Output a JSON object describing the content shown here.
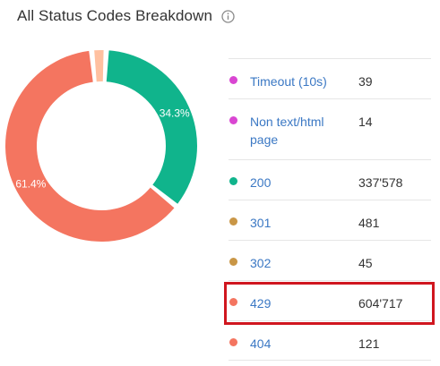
{
  "header": {
    "title": "All Status Codes Breakdown",
    "info_icon": "info-circle-icon"
  },
  "chart_data": {
    "type": "pie",
    "style": "donut",
    "labels": [
      "Timeout (10s)",
      "Non text/html page",
      "200",
      "301",
      "302",
      "429",
      "404"
    ],
    "values": [
      39,
      14,
      337578,
      481,
      45,
      604717,
      121
    ],
    "slice_labels": {
      "200": "34.3%",
      "429": "61.4%"
    },
    "colors": {
      "Timeout (10s)": "#d946d2",
      "Non text/html page": "#d946d2",
      "200": "#10b48c",
      "301": "#c99646",
      "302": "#c99646",
      "429": "#f47560",
      "404": "#f47560",
      "other": "#ffc0a0"
    }
  },
  "legend": {
    "items": [
      {
        "label": "Timeout (10s)",
        "value": "39",
        "color": "#d946d2"
      },
      {
        "label": "Non text/html page",
        "value": "14",
        "color": "#d946d2"
      },
      {
        "label": "200",
        "value": "337'578",
        "color": "#10b48c"
      },
      {
        "label": "301",
        "value": "481",
        "color": "#c99646"
      },
      {
        "label": "302",
        "value": "45",
        "color": "#c99646"
      },
      {
        "label": "429",
        "value": "604'717",
        "color": "#f47560"
      },
      {
        "label": "404",
        "value": "121",
        "color": "#f47560"
      }
    ]
  },
  "highlight_color": "#d0161f"
}
